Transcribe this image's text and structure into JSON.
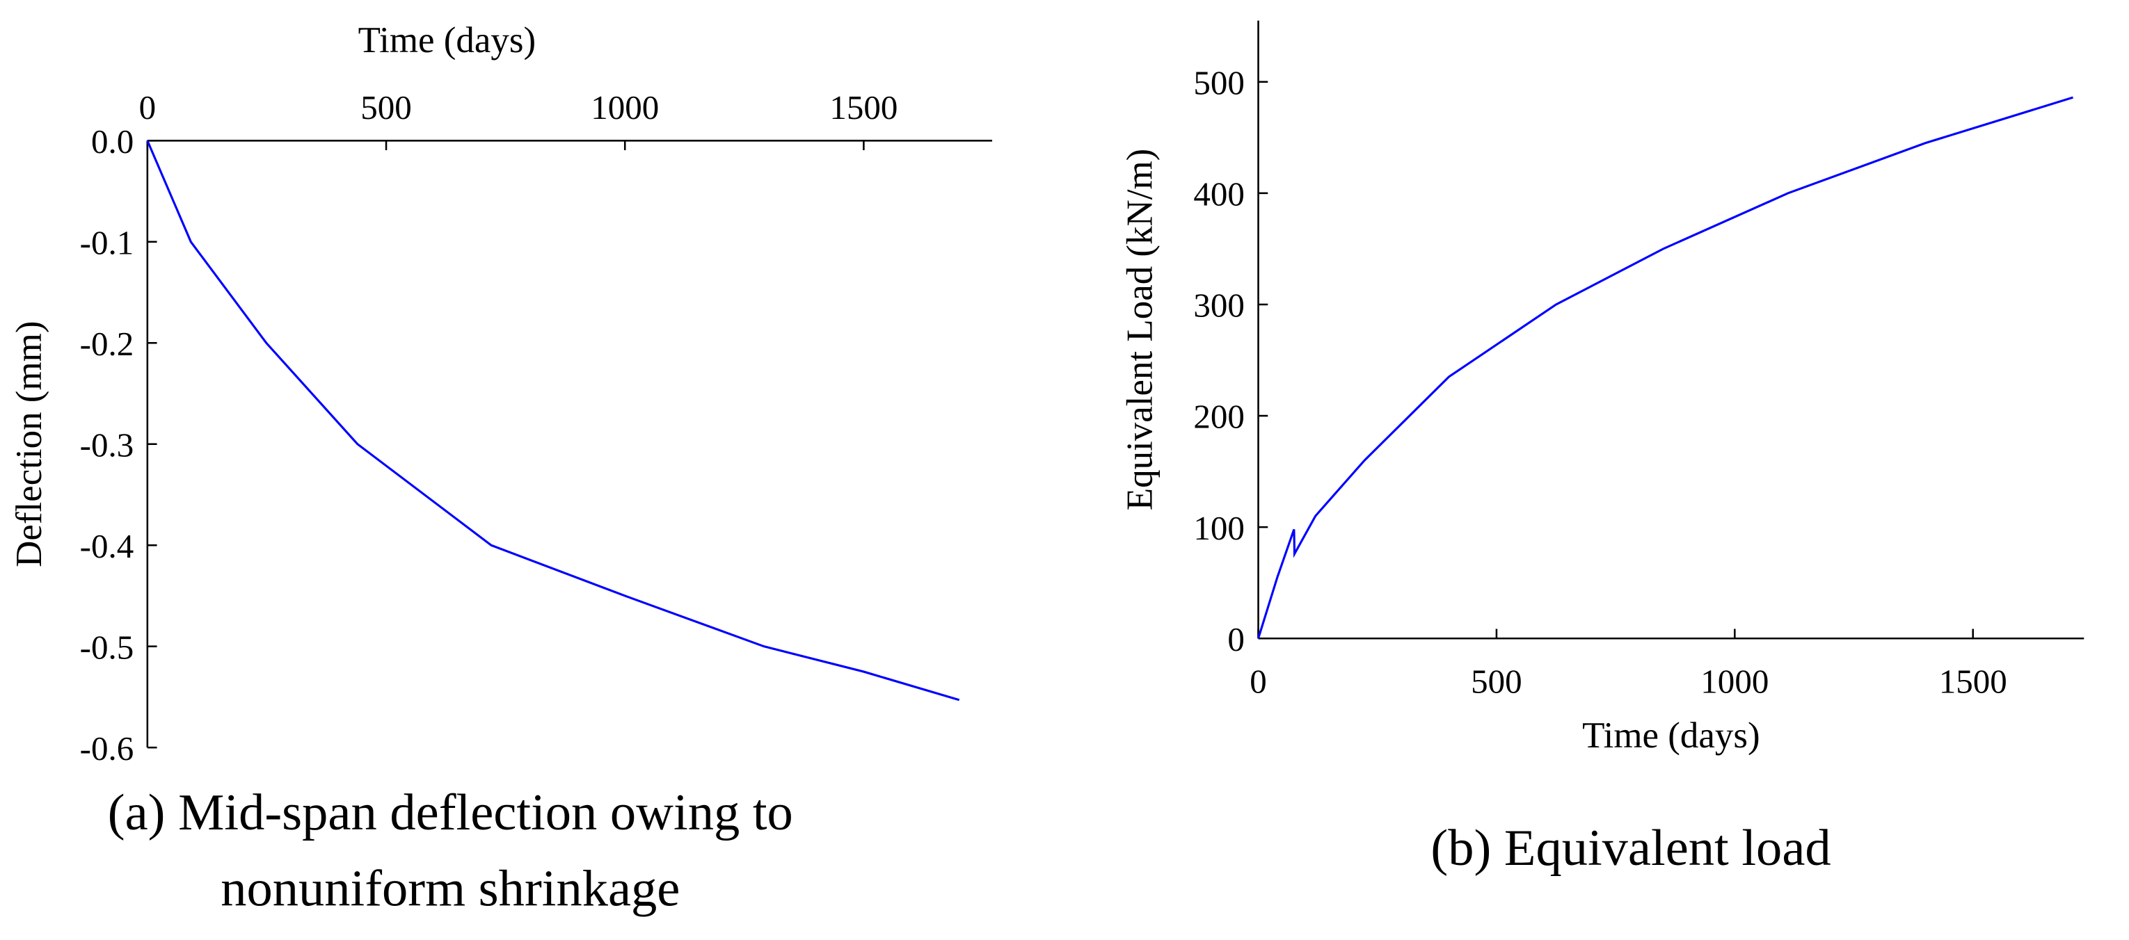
{
  "chart_data": [
    {
      "type": "line",
      "caption": "(a) Mid-span deflection owing to nonuniform shrinkage",
      "x_label": "Time (days)",
      "y_label": "Deflection (mm)",
      "x_axis_position": "top",
      "x": [
        0,
        91,
        249,
        440,
        720,
        1000,
        1291,
        1500,
        1700
      ],
      "values": [
        0,
        -0.1,
        -0.2,
        -0.3,
        -0.4,
        -0.45,
        -0.5,
        -0.525,
        -0.553
      ],
      "color": "#0000ff",
      "xlim": [
        0,
        1769
      ],
      "xticks": [
        0,
        500,
        1000,
        1500
      ],
      "ylim": [
        -0.6,
        0
      ],
      "yticks": [
        {
          "value": 0,
          "label": "0.0"
        },
        -0.1,
        -0.2,
        -0.3,
        -0.4,
        -0.5,
        -0.6
      ]
    },
    {
      "type": "line",
      "caption": "(b) Equivalent load",
      "x_label": "Time (days)",
      "y_label": "Equivalent Load (kN/m)",
      "x_axis_position": "bottom",
      "x": [
        0,
        40,
        75,
        76,
        120,
        223,
        400,
        625,
        850,
        1112,
        1400,
        1710
      ],
      "values": [
        0,
        55,
        98,
        76,
        110,
        160,
        235,
        300,
        350,
        400,
        445,
        486
      ],
      "color": "#0000ff",
      "xlim": [
        0,
        1733
      ],
      "xticks": [
        0,
        500,
        1000,
        1500
      ],
      "ylim": [
        0,
        555
      ],
      "yticks": [
        0,
        100,
        200,
        300,
        400,
        500
      ]
    }
  ]
}
